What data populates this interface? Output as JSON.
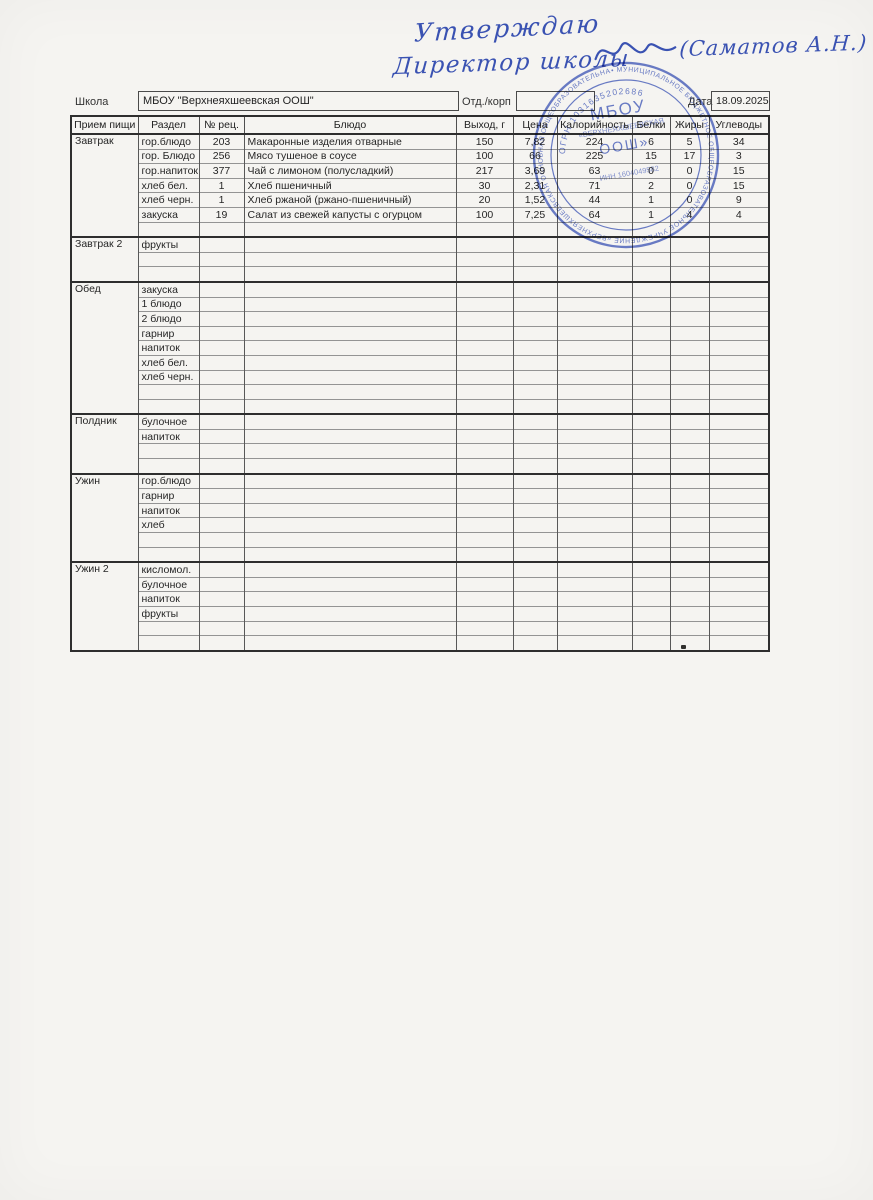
{
  "approval": {
    "line1": "Утверждаю",
    "line2": "Директор школы",
    "line3": "(Саматов А.Н.)"
  },
  "form": {
    "school_label": "Школа",
    "school_value": "МБОУ \"Верхнеяхшеевская ООШ\"",
    "dept_label": "Отд./корп",
    "dept_value": "",
    "date_label": "Дата",
    "date_value": "18.09.2025"
  },
  "table": {
    "headers": [
      "Прием пищи",
      "Раздел",
      "№ рец.",
      "Блюдо",
      "Выход, г",
      "Цена",
      "Калорийность",
      "Белки",
      "Жиры",
      "Углеводы"
    ],
    "sections": [
      {
        "meal": "Завтрак",
        "rows": [
          [
            "гор.блюдо",
            "203",
            "Макаронные изделия отварные",
            "150",
            "7,82",
            "224",
            "6",
            "5",
            "34"
          ],
          [
            "гор. Блюдо",
            "256",
            "Мясо тушеное в соусе",
            "100",
            "66",
            "225",
            "15",
            "17",
            "3"
          ],
          [
            "гор.напиток",
            "377",
            "Чай с лимоном (полусладкий)",
            "217",
            "3,69",
            "63",
            "0",
            "0",
            "15"
          ],
          [
            "хлеб бел.",
            "1",
            "Хлеб пшеничный",
            "30",
            "2,31",
            "71",
            "2",
            "0",
            "15"
          ],
          [
            "хлеб черн.",
            "1",
            "Хлеб ржаной (ржано-пшеничный)",
            "20",
            "1,52",
            "44",
            "1",
            "0",
            "9"
          ],
          [
            "закуска",
            "19",
            "Салат из свежей капусты с огурцом",
            "100",
            "7,25",
            "64",
            "1",
            "4",
            "4"
          ],
          [
            "",
            "",
            "",
            "",
            "",
            "",
            "",
            "",
            ""
          ]
        ]
      },
      {
        "meal": "Завтрак 2",
        "rows": [
          [
            "фрукты",
            "",
            "",
            "",
            "",
            "",
            "",
            "",
            ""
          ],
          [
            "",
            "",
            "",
            "",
            "",
            "",
            "",
            "",
            ""
          ],
          [
            "",
            "",
            "",
            "",
            "",
            "",
            "",
            "",
            ""
          ]
        ]
      },
      {
        "meal": "Обед",
        "rows": [
          [
            "закуска",
            "",
            "",
            "",
            "",
            "",
            "",
            "",
            ""
          ],
          [
            "1 блюдо",
            "",
            "",
            "",
            "",
            "",
            "",
            "",
            ""
          ],
          [
            "2 блюдо",
            "",
            "",
            "",
            "",
            "",
            "",
            "",
            ""
          ],
          [
            "гарнир",
            "",
            "",
            "",
            "",
            "",
            "",
            "",
            ""
          ],
          [
            "напиток",
            "",
            "",
            "",
            "",
            "",
            "",
            "",
            ""
          ],
          [
            "хлеб бел.",
            "",
            "",
            "",
            "",
            "",
            "",
            "",
            ""
          ],
          [
            "хлеб черн.",
            "",
            "",
            "",
            "",
            "",
            "",
            "",
            ""
          ],
          [
            "",
            "",
            "",
            "",
            "",
            "",
            "",
            "",
            ""
          ],
          [
            "",
            "",
            "",
            "",
            "",
            "",
            "",
            "",
            ""
          ]
        ]
      },
      {
        "meal": "Полдник",
        "rows": [
          [
            "булочное",
            "",
            "",
            "",
            "",
            "",
            "",
            "",
            ""
          ],
          [
            "напиток",
            "",
            "",
            "",
            "",
            "",
            "",
            "",
            ""
          ],
          [
            "",
            "",
            "",
            "",
            "",
            "",
            "",
            "",
            ""
          ],
          [
            "",
            "",
            "",
            "",
            "",
            "",
            "",
            "",
            ""
          ]
        ]
      },
      {
        "meal": "Ужин",
        "rows": [
          [
            "гор.блюдо",
            "",
            "",
            "",
            "",
            "",
            "",
            "",
            ""
          ],
          [
            "гарнир",
            "",
            "",
            "",
            "",
            "",
            "",
            "",
            ""
          ],
          [
            "напиток",
            "",
            "",
            "",
            "",
            "",
            "",
            "",
            ""
          ],
          [
            "хлеб",
            "",
            "",
            "",
            "",
            "",
            "",
            "",
            ""
          ],
          [
            "",
            "",
            "",
            "",
            "",
            "",
            "",
            "",
            ""
          ],
          [
            "",
            "",
            "",
            "",
            "",
            "",
            "",
            "",
            ""
          ]
        ]
      },
      {
        "meal": "Ужин 2",
        "rows": [
          [
            "кисломол.",
            "",
            "",
            "",
            "",
            "",
            "",
            "",
            ""
          ],
          [
            "булочное",
            "",
            "",
            "",
            "",
            "",
            "",
            "",
            ""
          ],
          [
            "напиток",
            "",
            "",
            "",
            "",
            "",
            "",
            "",
            ""
          ],
          [
            "фрукты",
            "",
            "",
            "",
            "",
            "",
            "",
            "",
            ""
          ],
          [
            "",
            "",
            "",
            "",
            "",
            "",
            "",
            "",
            ""
          ],
          [
            "",
            "",
            "",
            "",
            "",
            "",
            "",
            "",
            ""
          ]
        ]
      }
    ]
  },
  "stamp": {
    "ring_text": "• МУНИЦИПАЛЬНОЕ БЮДЖЕТНОЕ ОБЩЕОБРАЗОВАТЕЛЬНОЕ УЧРЕЖДЕНИЕ «ВЕРХНЕЯХШЕЕВСКАЯ ОСНОВНАЯ ОБЩЕОБРАЗОВАТЕЛЬНАЯ ШКОЛА» АКТАНЫШСКОГО МУНИЦИПАЛЬНОГО РАЙОНА",
    "ogrn_text": "ОГРН 1031635202686",
    "center_top": "МБОУ",
    "center_mid": "«ВЕРХНЕЯХШЕЕВСКАЯ",
    "center_low": "ООШ»",
    "inn_text": "ИНН 1604049582",
    "ink": "#4b63c4"
  }
}
